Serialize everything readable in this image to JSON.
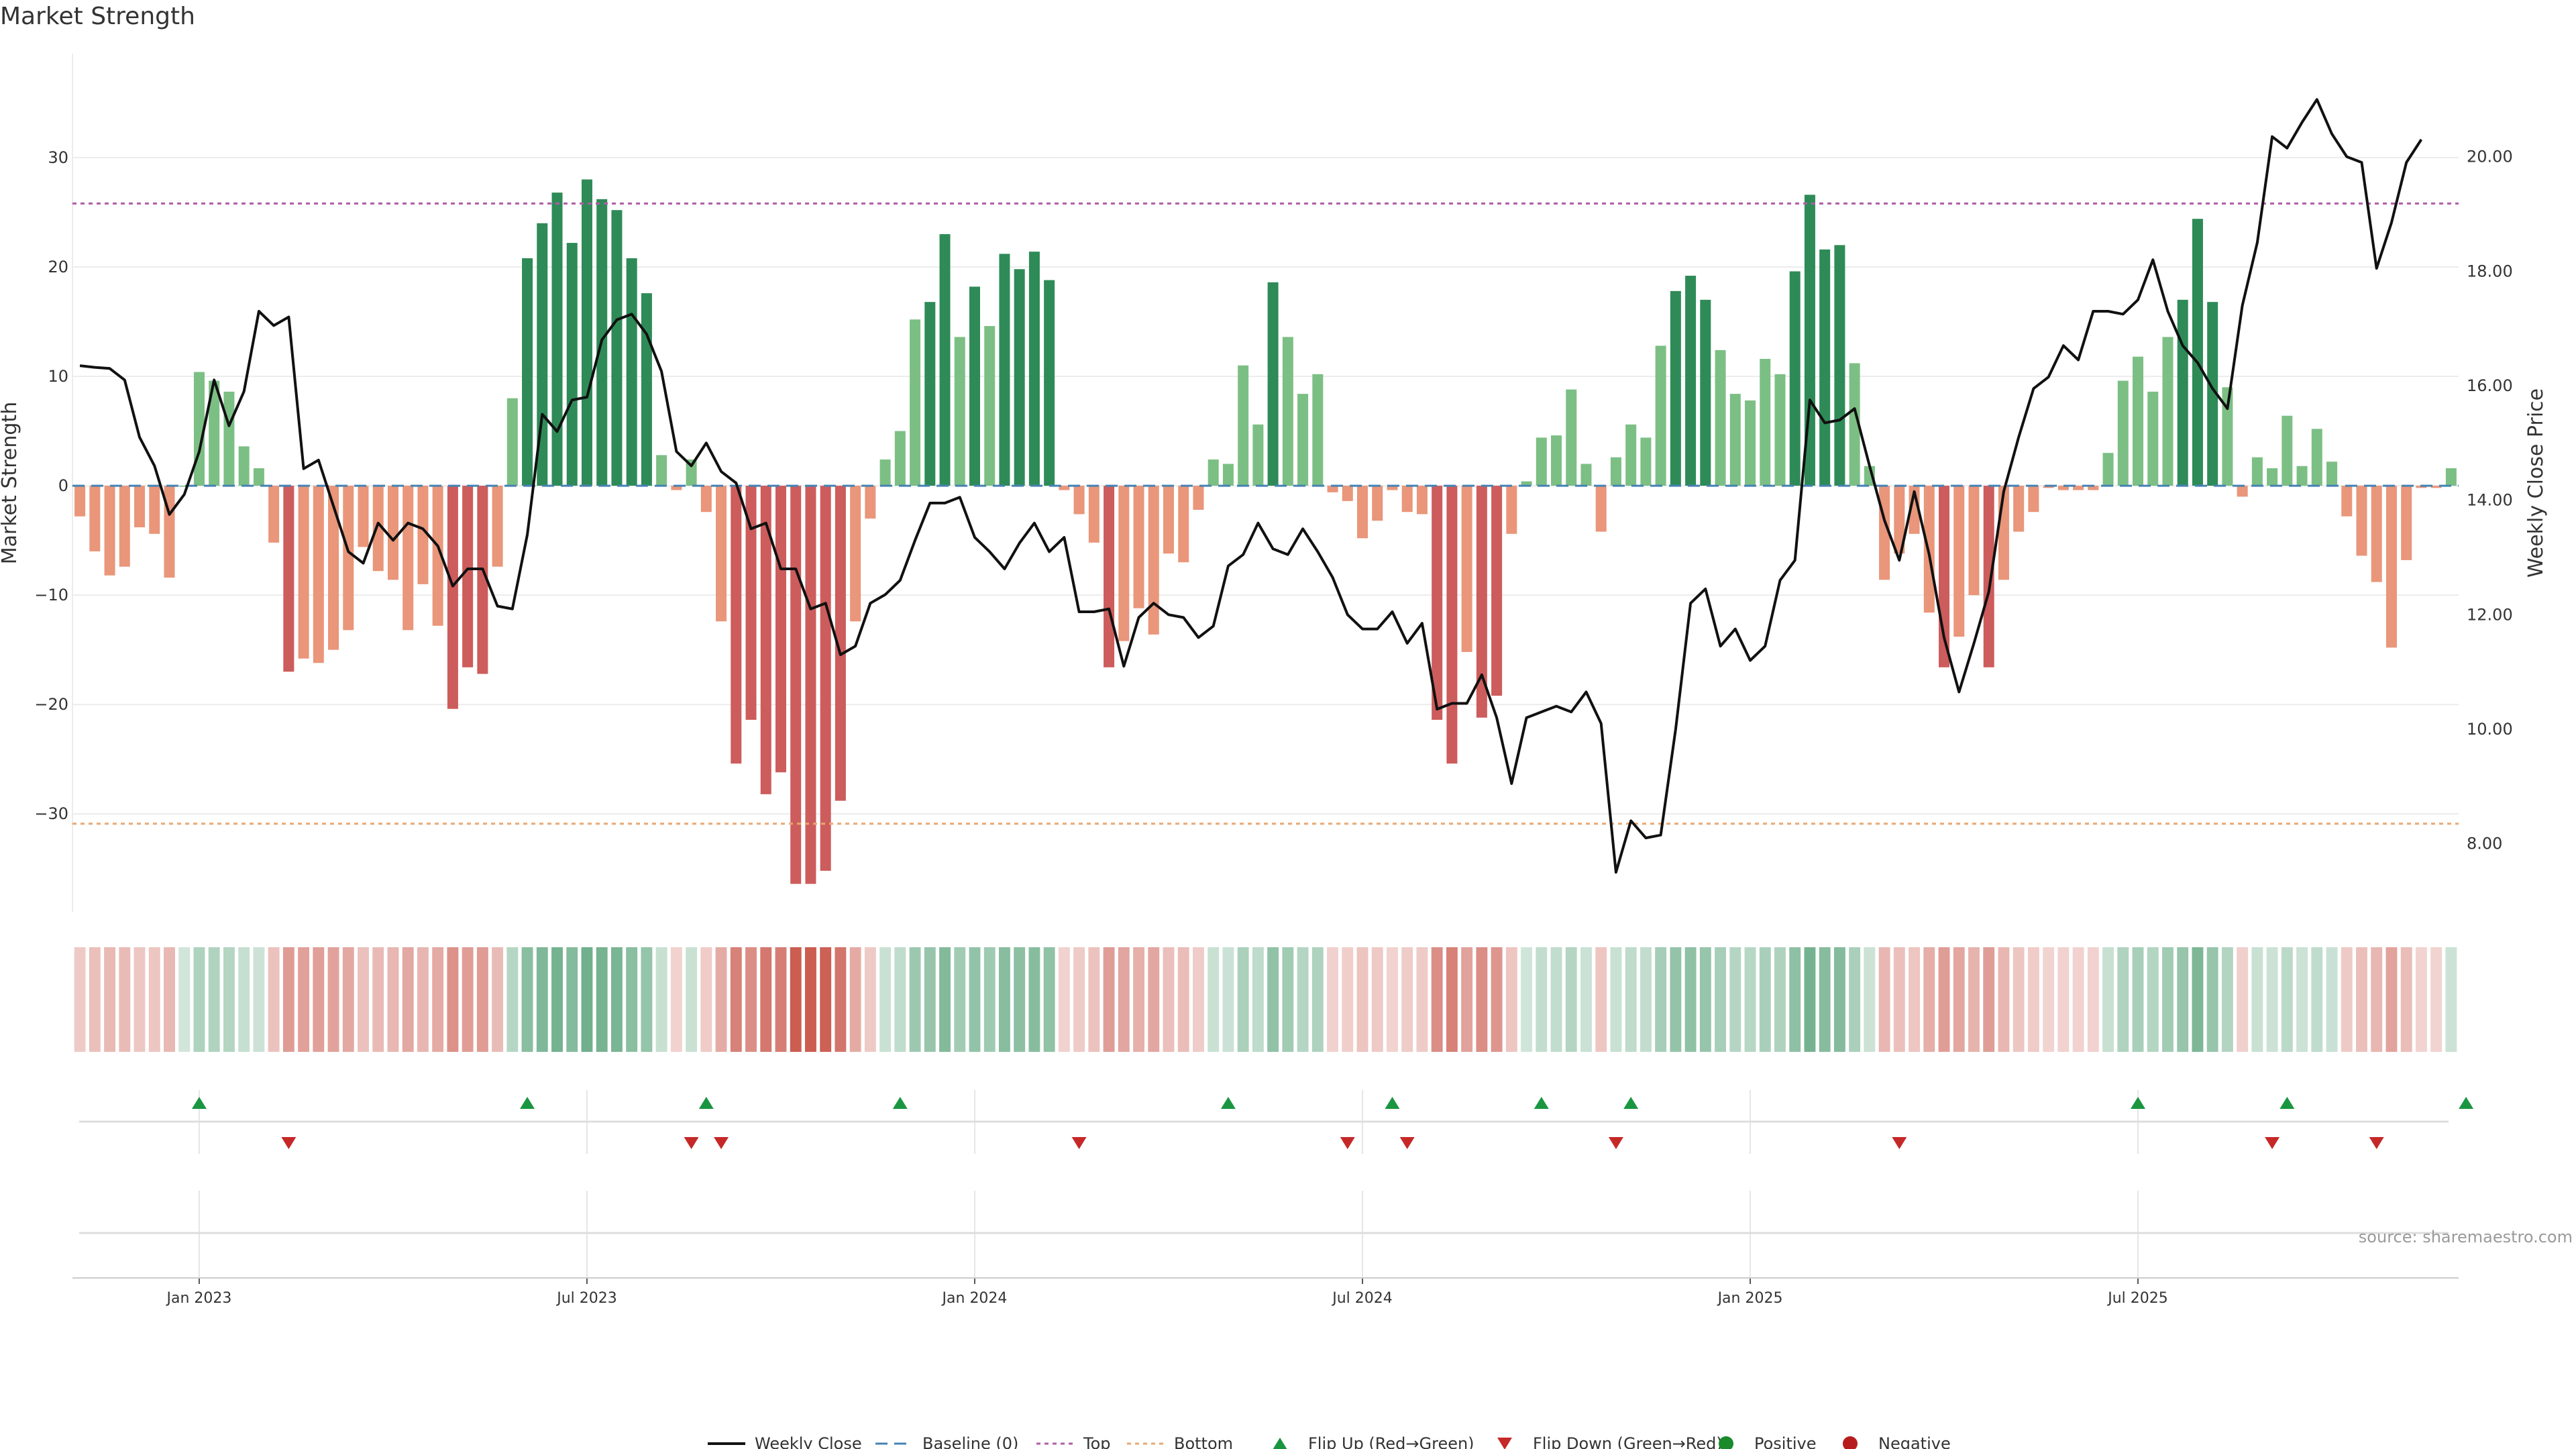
{
  "title": "Market Strength",
  "source": "source: sharemaestro.com",
  "colors": {
    "pos_dark": "#2e8b57",
    "pos_light": "#7cbf84",
    "neg_dark": "#cd5c5c",
    "neg_light": "#e9967a",
    "close_line": "#111111",
    "baseline": "#4682b4",
    "top_line": "#b05ca8",
    "bottom_line": "#e8a870",
    "flip_up": "#1a9641",
    "flip_down": "#c62828",
    "positive": "#1b8a2a",
    "negative": "#b71c1c"
  },
  "chart_data": {
    "type": "bar",
    "title": "Market Strength",
    "ylabel_left": "Market Strength",
    "ylabel_right": "Weekly Close Price",
    "left_ylim": [
      -39,
      39.5
    ],
    "right_ylim": [
      6.8,
      21.8
    ],
    "left_ticks": [
      -30,
      -20,
      -10,
      0,
      10,
      20,
      30
    ],
    "left_tick_labels": [
      "−30",
      "−20",
      "−10",
      "0",
      "10",
      "20",
      "30"
    ],
    "right_ticks": [
      8,
      10,
      12,
      14,
      16,
      18,
      20
    ],
    "right_tick_labels": [
      "8.00",
      "10.00",
      "12.00",
      "14.00",
      "16.00",
      "18.00",
      "20.00"
    ],
    "x_tick_labels": [
      "Jan 2023",
      "Jul 2023",
      "Jan 2024",
      "Jul 2024",
      "Jan 2025",
      "Jul 2025"
    ],
    "x_tick_week_index": [
      8,
      34,
      60,
      86,
      112,
      138
    ],
    "top_threshold": 25.8,
    "bottom_threshold": -30.9,
    "grid": true,
    "legend_position": "bottom",
    "legend": [
      "Weekly Close",
      "Baseline (0)",
      "Top",
      "Bottom",
      "Flip Up (Red→Green)",
      "Flip Down (Green→Red)",
      "Positive",
      "Negative"
    ],
    "strength": [
      -2.8,
      -6,
      -8.2,
      -7.4,
      -3.8,
      -4.4,
      -8.4,
      0,
      10.4,
      9.6,
      8.6,
      3.6,
      1.6,
      -5.2,
      -17,
      -15.8,
      -16.2,
      -15,
      -13.2,
      -5.6,
      -7.8,
      -8.6,
      -13.2,
      -9,
      -12.8,
      -20.4,
      -16.6,
      -17.2,
      -7.4,
      8,
      20.8,
      24,
      26.8,
      22.2,
      28,
      26.2,
      25.2,
      20.8,
      17.6,
      2.8,
      -0.4,
      2.4,
      -2.4,
      -12.4,
      -25.4,
      -21.4,
      -28.2,
      -26.2,
      -36.4,
      -36.4,
      -35.2,
      -28.8,
      -12.4,
      -3,
      2.4,
      5,
      15.2,
      16.8,
      23,
      13.6,
      18.2,
      14.6,
      21.2,
      19.8,
      21.4,
      18.8,
      -0.4,
      -2.6,
      -5.2,
      -16.6,
      -14.2,
      -11.2,
      -13.6,
      -6.2,
      -7,
      -2.2,
      2.4,
      2,
      11,
      5.6,
      18.6,
      13.6,
      8.4,
      10.2,
      -0.6,
      -1.4,
      -4.8,
      -3.2,
      -0.4,
      -2.4,
      -2.6,
      -21.4,
      -25.4,
      -15.2,
      -21.2,
      -19.2,
      -4.4,
      0.4,
      4.4,
      4.6,
      8.8,
      2,
      -4.2,
      2.6,
      5.6,
      4.4,
      12.8,
      17.8,
      19.2,
      17,
      12.4,
      8.4,
      7.8,
      11.6,
      10.2,
      19.6,
      26.6,
      21.6,
      22,
      11.2,
      1.8,
      -8.6,
      -6.2,
      -4.4,
      -11.6,
      -16.6,
      -13.8,
      -10,
      -16.6,
      -8.6,
      -4.2,
      -2.4,
      -0.2,
      -0.4,
      -0.4,
      -0.4,
      3,
      9.6,
      11.8,
      8.6,
      13.6,
      17,
      24.4,
      16.8,
      9,
      -1,
      2.6,
      1.6,
      6.4,
      1.8,
      5.2,
      2.2,
      -2.8,
      -6.4,
      -8.8,
      -14.8,
      -6.8,
      -0.2,
      -0.2,
      1.6
    ],
    "weekly_close": [
      16.35,
      16.32,
      16.3,
      16.1,
      15.1,
      14.6,
      13.75,
      14.1,
      14.85,
      16.1,
      15.3,
      15.9,
      17.3,
      17.05,
      17.2,
      14.55,
      14.7,
      13.9,
      13.1,
      12.9,
      13.6,
      13.3,
      13.6,
      13.5,
      13.2,
      12.5,
      12.8,
      12.8,
      12.15,
      12.1,
      13.4,
      15.5,
      15.2,
      15.75,
      15.8,
      16.8,
      17.15,
      17.25,
      16.9,
      16.25,
      14.85,
      14.6,
      15,
      14.5,
      14.3,
      13.5,
      13.6,
      12.8,
      12.8,
      12.1,
      12.2,
      11.3,
      11.45,
      12.2,
      12.35,
      12.6,
      13.3,
      13.95,
      13.95,
      14.05,
      13.35,
      13.1,
      12.8,
      13.25,
      13.6,
      13.1,
      13.35,
      12.05,
      12.05,
      12.1,
      11.1,
      11.95,
      12.2,
      12,
      11.95,
      11.6,
      11.8,
      12.85,
      13.05,
      13.6,
      13.15,
      13.05,
      13.5,
      13.1,
      12.65,
      12,
      11.75,
      11.75,
      12.05,
      11.5,
      11.85,
      10.35,
      10.45,
      10.45,
      10.95,
      10.2,
      9.05,
      10.2,
      10.3,
      10.4,
      10.3,
      10.65,
      10.1,
      7.5,
      8.4,
      8.1,
      8.15,
      10,
      12.2,
      12.45,
      11.45,
      11.75,
      11.2,
      11.45,
      12.6,
      12.95,
      15.75,
      15.35,
      15.4,
      15.6,
      14.6,
      13.65,
      12.95,
      14.15,
      13.05,
      11.6,
      10.65,
      11.5,
      12.4,
      14.15,
      15.1,
      15.95,
      16.15,
      16.7,
      16.45,
      17.3,
      17.3,
      17.25,
      17.5,
      18.2,
      17.3,
      16.7,
      16.4,
      15.95,
      15.6,
      17.4,
      18.5,
      20.35,
      20.15,
      20.6,
      21,
      20.4,
      20,
      19.9,
      18.05,
      18.85,
      19.9,
      20.3
    ],
    "flip_up_index": [
      8,
      30,
      42,
      55,
      77,
      88,
      98,
      104,
      138,
      148,
      160
    ],
    "flip_down_index": [
      14,
      41,
      43,
      67,
      85,
      89,
      103,
      122,
      147,
      154
    ]
  }
}
